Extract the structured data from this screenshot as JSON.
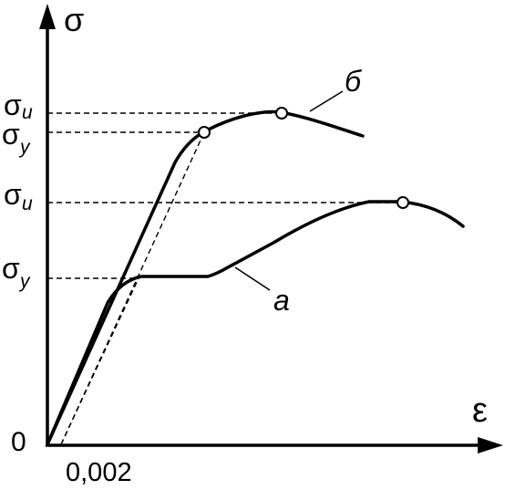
{
  "diagram": {
    "y_axis_symbol": "σ",
    "x_axis_symbol": "ε",
    "origin_label": "0",
    "offset_strain_label": "0,002",
    "stress_levels": [
      {
        "sym": "σ",
        "sub": "u",
        "curve": "б"
      },
      {
        "sym": "σ",
        "sub": "y",
        "curve": "б"
      },
      {
        "sym": "σ",
        "sub": "u",
        "curve": "a"
      },
      {
        "sym": "σ",
        "sub": "y",
        "curve": "a"
      }
    ],
    "curves": [
      {
        "label": "б"
      },
      {
        "label": "a"
      }
    ],
    "colors": {
      "line": "#000000",
      "background": "#ffffff"
    }
  }
}
